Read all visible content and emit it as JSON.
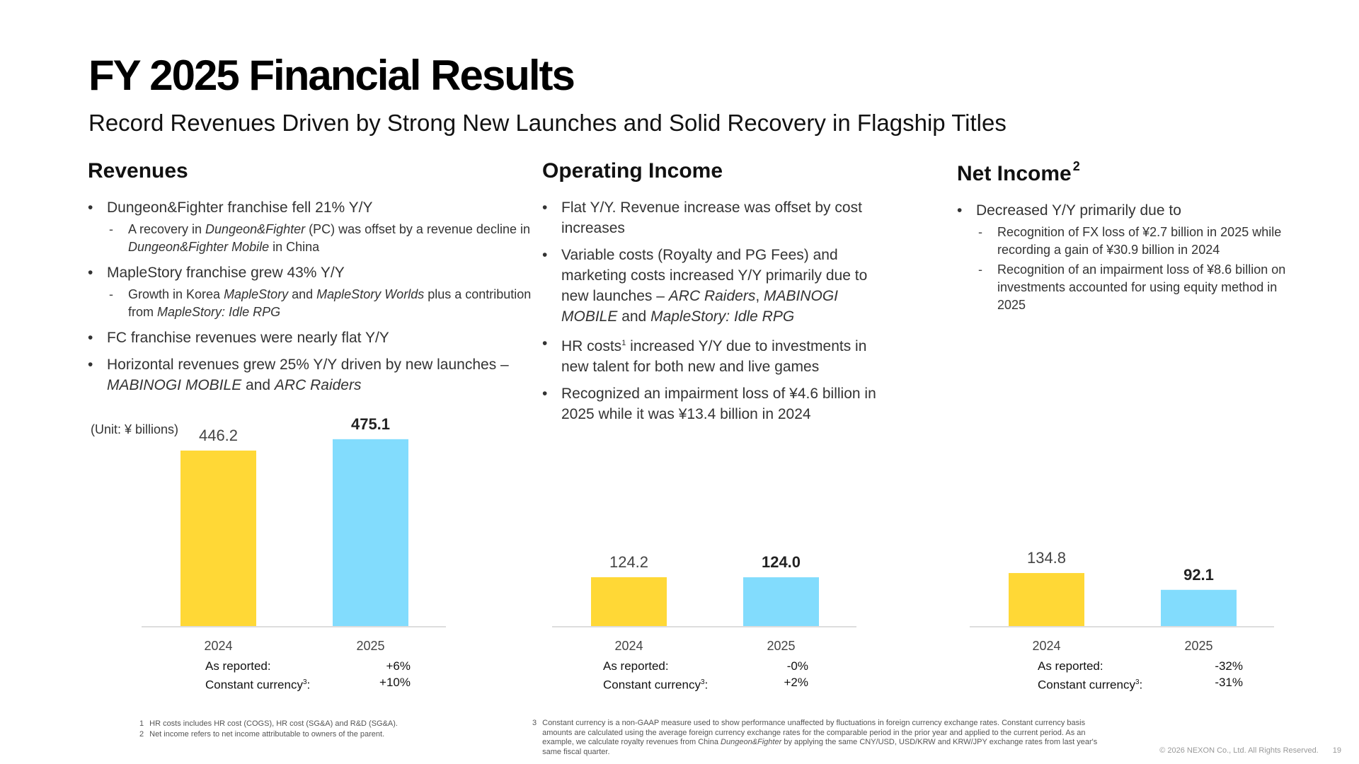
{
  "title": "FY 2025 Financial Results",
  "subtitle": "Record Revenues Driven by Strong New Launches and Solid Recovery in Flagship Titles",
  "unit_label": "(Unit: ¥ billions)",
  "colors": {
    "bar_2024": "#FFD836",
    "bar_2025": "#82DCFD",
    "axis": "#dddddd"
  },
  "sections": {
    "revenues": {
      "heading": "Revenues",
      "bullets": [
        "Dungeon&Fighter franchise fell 21% Y/Y",
        "MapleStory franchise grew 43% Y/Y",
        "FC franchise revenues were nearly flat Y/Y",
        "Horizontal revenues grew 25% Y/Y driven by new launches –"
      ],
      "b1_sub": {
        "a": "A recovery in ",
        "b": "Dungeon&Fighter",
        "c": " (PC) was offset by a revenue decline in ",
        "d": "Dungeon&Fighter Mobile",
        "e": " in China"
      },
      "b2_sub": {
        "a": "Growth in Korea ",
        "b": "MapleStory",
        "c": " and ",
        "d": "MapleStory Worlds",
        "e": " plus a contribution from ",
        "f": "MapleStory: Idle RPG"
      },
      "b4_tail": {
        "a": "MABINOGI MOBILE",
        "b": " and ",
        "c": "ARC Raiders"
      }
    },
    "operating_income": {
      "heading": "Operating Income",
      "bullets": [
        "Flat Y/Y. Revenue increase was offset by cost increases",
        "Variable costs (Royalty and PG Fees) and marketing costs increased Y/Y primarily due to new launches – ",
        "HR costs",
        " increased Y/Y due to investments in new talent for both new and live games",
        "Recognized an impairment loss of ¥4.6 billion in 2025 while it was ¥13.4 billion in 2024"
      ],
      "b2_tail": {
        "a": "ARC Raiders",
        "b": ", ",
        "c": "MABINOGI MOBILE",
        "d": " and ",
        "e": "MapleStory: Idle RPG"
      },
      "hr_sup": "1"
    },
    "net_income": {
      "heading": "Net Income",
      "heading_sup": "2",
      "bullets": [
        "Decreased Y/Y primarily due to"
      ],
      "subs": [
        "Recognition of FX loss of ¥2.7 billion in 2025 while recording a gain of ¥30.9 billion in 2024",
        "Recognition of an impairment loss of ¥8.6 billion on investments accounted for using equity method in 2025"
      ]
    }
  },
  "chart_data": [
    {
      "type": "bar",
      "title": "Revenues",
      "categories": [
        "2024",
        "2025"
      ],
      "values": [
        446.2,
        475.1
      ],
      "value_labels": [
        "446.2",
        "475.1"
      ],
      "ylabel": "¥ billions",
      "growth": {
        "reported_label": "As reported:",
        "reported": "+6%",
        "cc_label": "Constant currency",
        "cc_sup": "3",
        "cc_colon": ":",
        "cc": "+10%"
      }
    },
    {
      "type": "bar",
      "title": "Operating Income",
      "categories": [
        "2024",
        "2025"
      ],
      "values": [
        124.2,
        124.0
      ],
      "value_labels": [
        "124.2",
        "124.0"
      ],
      "ylabel": "¥ billions",
      "growth": {
        "reported_label": "As reported:",
        "reported": "-0%",
        "cc_label": "Constant currency",
        "cc_sup": "3",
        "cc_colon": ":",
        "cc": "+2%"
      }
    },
    {
      "type": "bar",
      "title": "Net Income",
      "categories": [
        "2024",
        "2025"
      ],
      "values": [
        134.8,
        92.1
      ],
      "value_labels": [
        "134.8",
        "92.1"
      ],
      "ylabel": "¥ billions",
      "growth": {
        "reported_label": "As reported:",
        "reported": "-32%",
        "cc_label": "Constant currency",
        "cc_sup": "3",
        "cc_colon": ":",
        "cc": "-31%"
      }
    }
  ],
  "footnotes": {
    "n1": {
      "num": "1",
      "text": "HR costs includes HR cost (COGS), HR cost (SG&A) and R&D (SG&A)."
    },
    "n2": {
      "num": "2",
      "text": "Net income refers to net income attributable to owners of the parent."
    },
    "n3": {
      "num": "3",
      "text_a": "Constant currency is a non-GAAP measure used to show performance unaffected by fluctuations in foreign currency exchange rates. Constant currency basis amounts are calculated using the average foreign currency exchange rates for the comparable period in the prior year and applied to the current period. As an example, we calculate royalty revenues from China ",
      "text_b": "Dungeon&Fighter",
      "text_c": " by applying the same CNY/USD, USD/KRW and KRW/JPY exchange rates from last year's same fiscal quarter."
    }
  },
  "copyright": "© 2026 NEXON Co., Ltd. All Rights Reserved.",
  "page_number": "19"
}
